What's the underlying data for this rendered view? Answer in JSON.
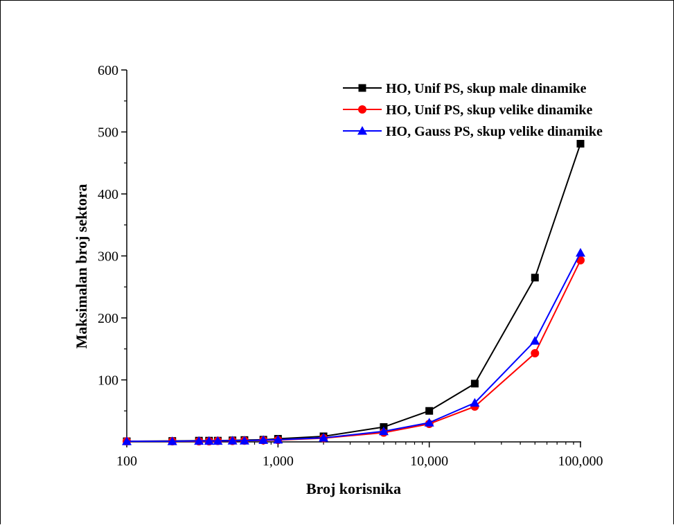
{
  "chart_data": {
    "type": "line",
    "xlabel": "Broj korisnika",
    "ylabel": "Maksimalan broj sektora",
    "x_scale": "log",
    "xlim": [
      100,
      100000
    ],
    "ylim": [
      0,
      600
    ],
    "x_ticks": [
      100,
      1000,
      10000,
      100000
    ],
    "x_tick_labels": [
      "100",
      "1,000",
      "10,000",
      "100,000"
    ],
    "y_ticks": [
      100,
      200,
      300,
      400,
      500,
      600
    ],
    "y_tick_labels": [
      "100",
      "200",
      "300",
      "400",
      "500",
      "600"
    ],
    "grid": false,
    "legend_position": "top-right",
    "x": [
      100,
      200,
      300,
      350,
      400,
      500,
      600,
      800,
      1000,
      2000,
      5000,
      10000,
      20000,
      50000,
      100000
    ],
    "series": [
      {
        "name": "HO, Unif PS, skup male dinamike",
        "color": "#000000",
        "marker": "square",
        "values": [
          1,
          1.5,
          2,
          2,
          2,
          2.5,
          3,
          3.5,
          5,
          9,
          24,
          50,
          94,
          265,
          481
        ]
      },
      {
        "name": "HO, Unif PS, skup velike dinamike",
        "color": "#ff0000",
        "marker": "circle",
        "values": [
          1,
          1,
          1,
          1,
          1.5,
          1.5,
          2,
          2.5,
          3,
          6,
          15,
          29,
          57,
          143,
          293
        ]
      },
      {
        "name": "HO, Gauss PS, skup velike dinamike",
        "color": "#0000ff",
        "marker": "triangle",
        "values": [
          1,
          1,
          1.5,
          1.5,
          1.5,
          2,
          2,
          3,
          3.5,
          6.5,
          17,
          31,
          63,
          163,
          305
        ]
      }
    ]
  }
}
